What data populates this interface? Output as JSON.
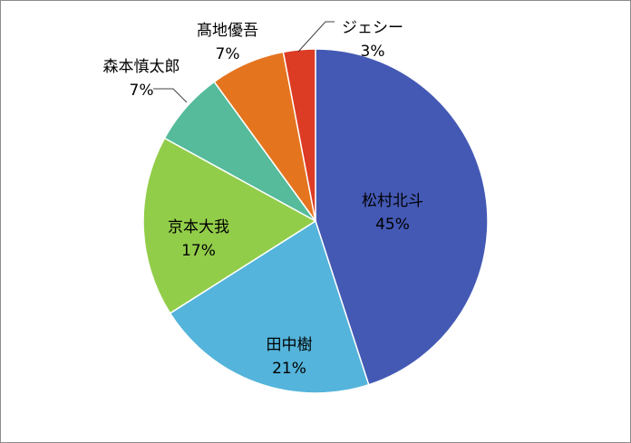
{
  "chart_data": {
    "type": "pie",
    "slices": [
      {
        "label": "松村北斗",
        "value": 45,
        "display": "45%",
        "color": "#4459b4"
      },
      {
        "label": "田中樹",
        "value": 21,
        "display": "21%",
        "color": "#54b4db"
      },
      {
        "label": "京本大我",
        "value": 17,
        "display": "17%",
        "color": "#92cd4a"
      },
      {
        "label": "森本慎太郎",
        "value": 7,
        "display": "7%",
        "color": "#55bb9b"
      },
      {
        "label": "髙地優吾",
        "value": 7,
        "display": "7%",
        "color": "#e5741e"
      },
      {
        "label": "ジェシー",
        "value": 3,
        "display": "3%",
        "color": "#dc3b24"
      }
    ],
    "start": "12 o'clock",
    "direction": "clockwise",
    "legend": "none"
  }
}
